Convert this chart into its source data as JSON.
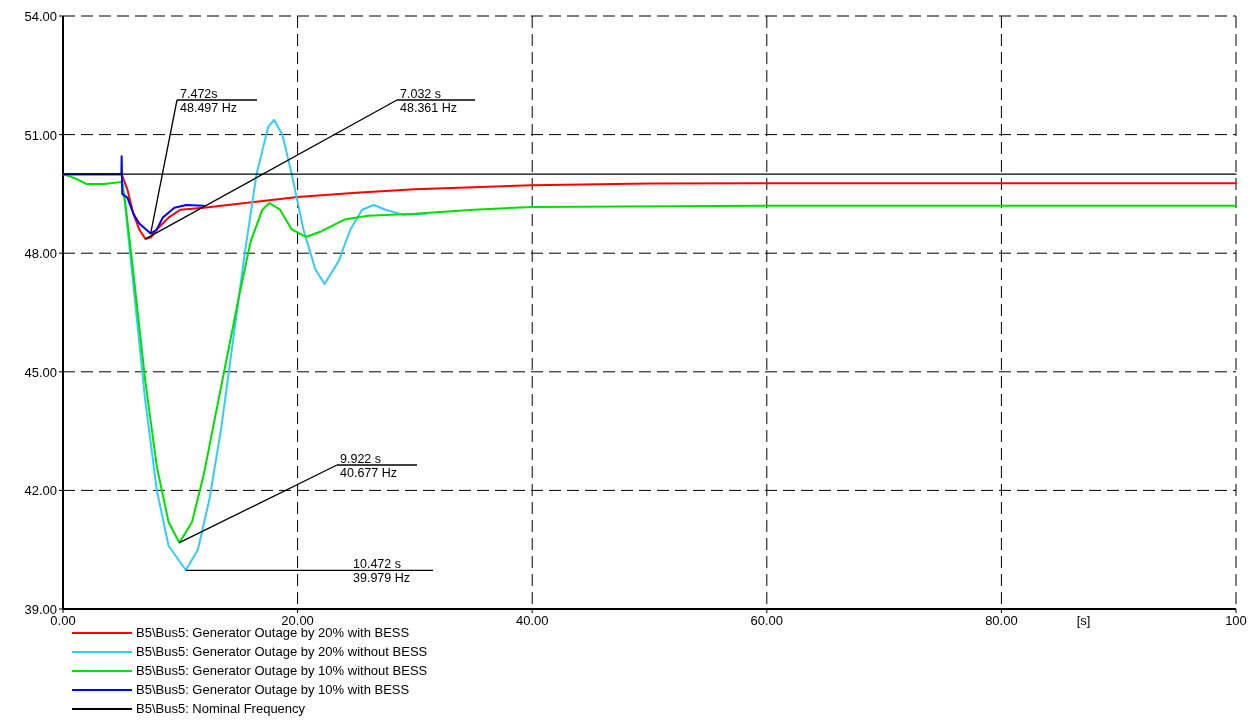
{
  "chart_data": {
    "type": "line",
    "xlabel": "[s]",
    "xlim": [
      0,
      100
    ],
    "xticks": [
      {
        "value": 0,
        "label": "0.00"
      },
      {
        "value": 20,
        "label": "20.00"
      },
      {
        "value": 40,
        "label": "40.00"
      },
      {
        "value": 60,
        "label": "60.00"
      },
      {
        "value": 80,
        "label": "80.00"
      },
      {
        "value": 100,
        "label": "100"
      }
    ],
    "ylim": [
      39,
      54
    ],
    "yticks": [
      {
        "value": 39,
        "label": "39.00"
      },
      {
        "value": 42,
        "label": "42.00"
      },
      {
        "value": 45,
        "label": "45.00"
      },
      {
        "value": 48,
        "label": "48.00"
      },
      {
        "value": 51,
        "label": "51.00"
      },
      {
        "value": 54,
        "label": "54.00"
      }
    ],
    "grid": true,
    "legend": "bottom",
    "marker": "none",
    "line_style": "solid",
    "series": [
      {
        "name": "B5\\Bus5: Generator Outage by 20% with BESS",
        "color": "#ff0000",
        "x": [
          0,
          5,
          5.5,
          6,
          6.5,
          7.032,
          7.5,
          8,
          9,
          10,
          12,
          15,
          20,
          25,
          30,
          40,
          50,
          60,
          100
        ],
        "values": [
          50,
          50,
          49.6,
          49.0,
          48.6,
          48.361,
          48.4,
          48.6,
          48.9,
          49.1,
          49.15,
          49.25,
          49.42,
          49.53,
          49.62,
          49.72,
          49.76,
          49.77,
          49.77
        ]
      },
      {
        "name": "B5\\Bus5: Generator Outage by 20% without BESS",
        "color": "#33ccff",
        "x": [
          0,
          5,
          5.3,
          6,
          7,
          8,
          9,
          10.472,
          11.5,
          12.5,
          13.5,
          14.5,
          15.5,
          16.5,
          17.5,
          18,
          18.7,
          19.5,
          20.5,
          21.5,
          22.3,
          23.5,
          24.5,
          25.5,
          26.5,
          27.5,
          29,
          31
        ],
        "values": [
          50,
          50,
          49.2,
          47.2,
          44.3,
          42.0,
          40.6,
          39.979,
          40.5,
          41.8,
          43.6,
          45.8,
          48.0,
          50.0,
          51.2,
          51.37,
          51.0,
          50.0,
          48.6,
          47.6,
          47.22,
          47.8,
          48.6,
          49.1,
          49.22,
          49.1,
          48.97,
          49.0
        ]
      },
      {
        "name": "B5\\Bus5: Generator Outage by 10% without BESS",
        "color": "#00e000",
        "x": [
          0,
          1,
          2,
          3.5,
          5,
          5.3,
          6,
          7,
          8,
          9,
          9.922,
          11,
          12,
          13,
          14,
          15,
          16,
          17,
          17.6,
          18.5,
          19.5,
          20.7,
          22,
          24,
          26,
          30,
          35,
          40,
          60,
          100
        ],
        "values": [
          50,
          49.9,
          49.75,
          49.75,
          49.8,
          49.3,
          47.5,
          44.8,
          42.6,
          41.2,
          40.677,
          41.2,
          42.4,
          43.9,
          45.4,
          46.9,
          48.3,
          49.1,
          49.27,
          49.1,
          48.6,
          48.41,
          48.55,
          48.85,
          48.95,
          49.0,
          49.1,
          49.17,
          49.2,
          49.2
        ]
      },
      {
        "name": "B5\\Bus5: Generator Outage by 10% with BESS",
        "color": "#0000ff",
        "x": [
          0,
          4.98,
          5,
          5.05,
          5.5,
          6,
          6.5,
          7.472,
          8,
          8.5,
          9.5,
          10.5,
          12
        ],
        "values": [
          50,
          50,
          50.45,
          49.5,
          49.4,
          49.0,
          48.75,
          48.497,
          48.6,
          48.9,
          49.15,
          49.22,
          49.2
        ]
      },
      {
        "name": "B5\\Bus5: Nominal Frequency",
        "color": "#000000",
        "x": [
          0,
          100
        ],
        "values": [
          50,
          50
        ]
      }
    ],
    "annotations": [
      {
        "text": "7.472s\n48.497 Hz",
        "x": 7.472,
        "y": 48.497
      },
      {
        "text": "7.032 s\n48.361 Hz",
        "x": 7.032,
        "y": 48.361
      },
      {
        "text": "9.922 s\n40.677 Hz",
        "x": 9.922,
        "y": 40.677
      },
      {
        "text": "10.472 s\n39.979 Hz",
        "x": 10.472,
        "y": 39.979
      }
    ]
  }
}
